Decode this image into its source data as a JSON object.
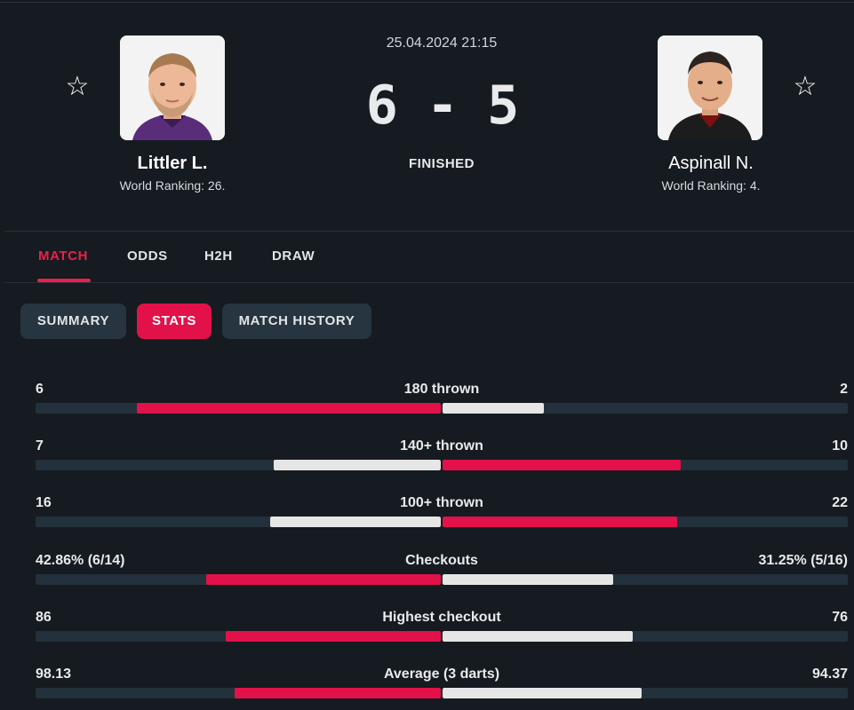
{
  "match": {
    "datetime": "25.04.2024 21:15",
    "score": "6 - 5",
    "status": "FINISHED"
  },
  "home": {
    "name": "Littler L.",
    "ranking": "World Ranking: 26.",
    "star_icon": "star-outline-icon"
  },
  "away": {
    "name": "Aspinall N.",
    "ranking": "World Ranking: 4.",
    "star_icon": "star-outline-icon"
  },
  "tabs": [
    {
      "label": "MATCH",
      "active": true
    },
    {
      "label": "ODDS",
      "active": false
    },
    {
      "label": "H2H",
      "active": false
    },
    {
      "label": "DRAW",
      "active": false
    }
  ],
  "subtabs": [
    {
      "label": "SUMMARY",
      "active": false
    },
    {
      "label": "STATS",
      "active": true
    },
    {
      "label": "MATCH HISTORY",
      "active": false
    }
  ],
  "colors": {
    "accent": "#e3114a",
    "winner_bar": "#e3114a",
    "loser_bar": "#e6e6e6",
    "track": "#22313b"
  },
  "stats": [
    {
      "label": "180 thrown",
      "home": "6",
      "away": "2",
      "home_frac": 0.75,
      "away_frac": 0.25,
      "home_better": true
    },
    {
      "label": "140+ thrown",
      "home": "7",
      "away": "10",
      "home_frac": 0.412,
      "away_frac": 0.588,
      "home_better": false
    },
    {
      "label": "100+ thrown",
      "home": "16",
      "away": "22",
      "home_frac": 0.421,
      "away_frac": 0.579,
      "home_better": false
    },
    {
      "label": "Checkouts",
      "home": "42.86% (6/14)",
      "away": "31.25% (5/16)",
      "home_frac": 0.5784,
      "away_frac": 0.4216,
      "home_better": true
    },
    {
      "label": "Highest checkout",
      "home": "86",
      "away": "76",
      "home_frac": 0.5309,
      "away_frac": 0.4691,
      "home_better": true
    },
    {
      "label": "Average (3 darts)",
      "home": "98.13",
      "away": "94.37",
      "home_frac": 0.5098,
      "away_frac": 0.4902,
      "home_better": true
    }
  ]
}
